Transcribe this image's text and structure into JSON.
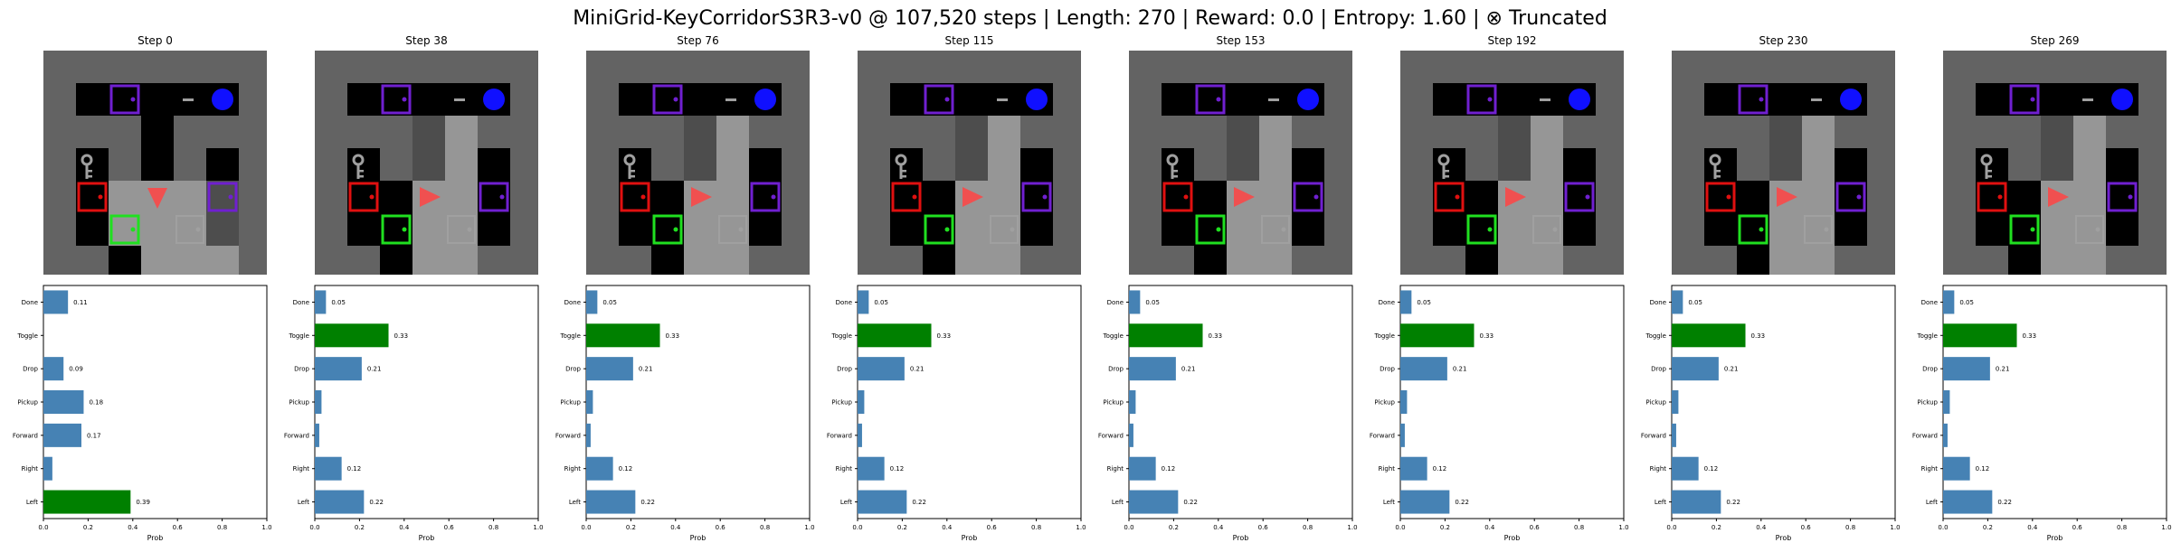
{
  "title": "MiniGrid-KeyCorridorS3R3-v0 @ 107,520 steps | Length: 270 | Reward: 0.0 | Entropy: 1.60 | ⊗ Truncated",
  "colors": {
    "bar": "#4682b4",
    "bar_max": "#008000",
    "wall": "#636363",
    "empty": "#000000",
    "floor_light": "#969696",
    "floor_mid": "#4d4d4d",
    "agent": "#f05050",
    "door_purple": "#7020d0",
    "door_red": "#e01010",
    "door_green": "#20e020",
    "ball_blue": "#1010ff",
    "key_grey": "#a0a0a0"
  },
  "panels": [
    {
      "step_label": "Step 0",
      "agent_dir": "down",
      "view_cells": [
        [
          3,
          4
        ],
        [
          4,
          2
        ],
        [
          4,
          3
        ],
        [
          4,
          4
        ],
        [
          5,
          2
        ],
        [
          5,
          3
        ],
        [
          5,
          4
        ]
      ],
      "chart_data": {
        "type": "bar",
        "orientation": "horizontal",
        "categories": [
          "Done",
          "Toggle",
          "Drop",
          "Pickup",
          "Forward",
          "Right",
          "Left"
        ],
        "values": [
          0.11,
          0.0,
          0.09,
          0.18,
          0.17,
          0.04,
          0.39
        ],
        "value_labels": [
          "0.11",
          "",
          "0.09",
          "0.18",
          "0.17",
          "",
          "0.39"
        ],
        "xlabel": "Prob",
        "xlim": [
          0,
          1
        ],
        "xticks": [
          "0.0",
          "0.2",
          "0.4",
          "0.6",
          "0.8",
          "1.0"
        ]
      }
    },
    {
      "step_label": "Step 38",
      "agent_dir": "right",
      "view_cells": [
        [
          1,
          3
        ],
        [
          2,
          3
        ],
        [
          3,
          3
        ],
        [
          4,
          3
        ],
        [
          5,
          3
        ],
        [
          1,
          2
        ],
        [
          2,
          2
        ],
        [
          3,
          2
        ],
        [
          4,
          2
        ],
        [
          5,
          2
        ]
      ],
      "chart_data": {
        "type": "bar",
        "orientation": "horizontal",
        "categories": [
          "Done",
          "Toggle",
          "Drop",
          "Pickup",
          "Forward",
          "Right",
          "Left"
        ],
        "values": [
          0.05,
          0.33,
          0.21,
          0.03,
          0.02,
          0.12,
          0.22
        ],
        "value_labels": [
          "0.05",
          "0.33",
          "0.21",
          "",
          "",
          "0.12",
          "0.22"
        ],
        "xlabel": "Prob",
        "xlim": [
          0,
          1
        ],
        "xticks": [
          "0.0",
          "0.2",
          "0.4",
          "0.6",
          "0.8",
          "1.0"
        ]
      }
    },
    {
      "step_label": "Step 76",
      "agent_dir": "right",
      "view_cells": [
        [
          1,
          3
        ],
        [
          2,
          3
        ],
        [
          3,
          3
        ],
        [
          4,
          3
        ],
        [
          5,
          3
        ],
        [
          1,
          2
        ],
        [
          2,
          2
        ],
        [
          3,
          2
        ],
        [
          4,
          2
        ],
        [
          5,
          2
        ]
      ],
      "chart_data": {
        "type": "bar",
        "orientation": "horizontal",
        "categories": [
          "Done",
          "Toggle",
          "Drop",
          "Pickup",
          "Forward",
          "Right",
          "Left"
        ],
        "values": [
          0.05,
          0.33,
          0.21,
          0.03,
          0.02,
          0.12,
          0.22
        ],
        "value_labels": [
          "0.05",
          "0.33",
          "0.21",
          "",
          "",
          "0.12",
          "0.22"
        ],
        "xlabel": "Prob",
        "xlim": [
          0,
          1
        ],
        "xticks": [
          "0.0",
          "0.2",
          "0.4",
          "0.6",
          "0.8",
          "1.0"
        ]
      }
    },
    {
      "step_label": "Step 115",
      "agent_dir": "right",
      "view_cells": [
        [
          1,
          3
        ],
        [
          2,
          3
        ],
        [
          3,
          3
        ],
        [
          4,
          3
        ],
        [
          5,
          3
        ],
        [
          1,
          2
        ],
        [
          2,
          2
        ],
        [
          3,
          2
        ],
        [
          4,
          2
        ],
        [
          5,
          2
        ]
      ],
      "chart_data": {
        "type": "bar",
        "orientation": "horizontal",
        "categories": [
          "Done",
          "Toggle",
          "Drop",
          "Pickup",
          "Forward",
          "Right",
          "Left"
        ],
        "values": [
          0.05,
          0.33,
          0.21,
          0.03,
          0.02,
          0.12,
          0.22
        ],
        "value_labels": [
          "0.05",
          "0.33",
          "0.21",
          "",
          "",
          "0.12",
          "0.22"
        ],
        "xlabel": "Prob",
        "xlim": [
          0,
          1
        ],
        "xticks": [
          "0.0",
          "0.2",
          "0.4",
          "0.6",
          "0.8",
          "1.0"
        ]
      }
    },
    {
      "step_label": "Step 153",
      "agent_dir": "right",
      "view_cells": [
        [
          1,
          3
        ],
        [
          2,
          3
        ],
        [
          3,
          3
        ],
        [
          4,
          3
        ],
        [
          5,
          3
        ],
        [
          1,
          2
        ],
        [
          2,
          2
        ],
        [
          3,
          2
        ],
        [
          4,
          2
        ],
        [
          5,
          2
        ]
      ],
      "chart_data": {
        "type": "bar",
        "orientation": "horizontal",
        "categories": [
          "Done",
          "Toggle",
          "Drop",
          "Pickup",
          "Forward",
          "Right",
          "Left"
        ],
        "values": [
          0.05,
          0.33,
          0.21,
          0.03,
          0.02,
          0.12,
          0.22
        ],
        "value_labels": [
          "0.05",
          "0.33",
          "0.21",
          "",
          "",
          "0.12",
          "0.22"
        ],
        "xlabel": "Prob",
        "xlim": [
          0,
          1
        ],
        "xticks": [
          "0.0",
          "0.2",
          "0.4",
          "0.6",
          "0.8",
          "1.0"
        ]
      }
    },
    {
      "step_label": "Step 192",
      "agent_dir": "right",
      "view_cells": [
        [
          1,
          3
        ],
        [
          2,
          3
        ],
        [
          3,
          3
        ],
        [
          4,
          3
        ],
        [
          5,
          3
        ],
        [
          1,
          2
        ],
        [
          2,
          2
        ],
        [
          3,
          2
        ],
        [
          4,
          2
        ],
        [
          5,
          2
        ]
      ],
      "chart_data": {
        "type": "bar",
        "orientation": "horizontal",
        "categories": [
          "Done",
          "Toggle",
          "Drop",
          "Pickup",
          "Forward",
          "Right",
          "Left"
        ],
        "values": [
          0.05,
          0.33,
          0.21,
          0.03,
          0.02,
          0.12,
          0.22
        ],
        "value_labels": [
          "0.05",
          "0.33",
          "0.21",
          "",
          "",
          "0.12",
          "0.22"
        ],
        "xlabel": "Prob",
        "xlim": [
          0,
          1
        ],
        "xticks": [
          "0.0",
          "0.2",
          "0.4",
          "0.6",
          "0.8",
          "1.0"
        ]
      }
    },
    {
      "step_label": "Step 230",
      "agent_dir": "right",
      "view_cells": [
        [
          1,
          3
        ],
        [
          2,
          3
        ],
        [
          3,
          3
        ],
        [
          4,
          3
        ],
        [
          5,
          3
        ],
        [
          1,
          2
        ],
        [
          2,
          2
        ],
        [
          3,
          2
        ],
        [
          4,
          2
        ],
        [
          5,
          2
        ]
      ],
      "chart_data": {
        "type": "bar",
        "orientation": "horizontal",
        "categories": [
          "Done",
          "Toggle",
          "Drop",
          "Pickup",
          "Forward",
          "Right",
          "Left"
        ],
        "values": [
          0.05,
          0.33,
          0.21,
          0.03,
          0.02,
          0.12,
          0.22
        ],
        "value_labels": [
          "0.05",
          "0.33",
          "0.21",
          "",
          "",
          "0.12",
          "0.22"
        ],
        "xlabel": "Prob",
        "xlim": [
          0,
          1
        ],
        "xticks": [
          "0.0",
          "0.2",
          "0.4",
          "0.6",
          "0.8",
          "1.0"
        ]
      }
    },
    {
      "step_label": "Step 269",
      "agent_dir": "right",
      "view_cells": [
        [
          1,
          3
        ],
        [
          2,
          3
        ],
        [
          3,
          3
        ],
        [
          4,
          3
        ],
        [
          5,
          3
        ],
        [
          1,
          2
        ],
        [
          2,
          2
        ],
        [
          3,
          2
        ],
        [
          4,
          2
        ],
        [
          5,
          2
        ]
      ],
      "chart_data": {
        "type": "bar",
        "orientation": "horizontal",
        "categories": [
          "Done",
          "Toggle",
          "Drop",
          "Pickup",
          "Forward",
          "Right",
          "Left"
        ],
        "values": [
          0.05,
          0.33,
          0.21,
          0.03,
          0.02,
          0.12,
          0.22
        ],
        "value_labels": [
          "0.05",
          "0.33",
          "0.21",
          "",
          "",
          "0.12",
          "0.22"
        ],
        "xlabel": "Prob",
        "xlim": [
          0,
          1
        ],
        "xticks": [
          "0.0",
          "0.2",
          "0.4",
          "0.6",
          "0.8",
          "1.0"
        ]
      }
    }
  ]
}
